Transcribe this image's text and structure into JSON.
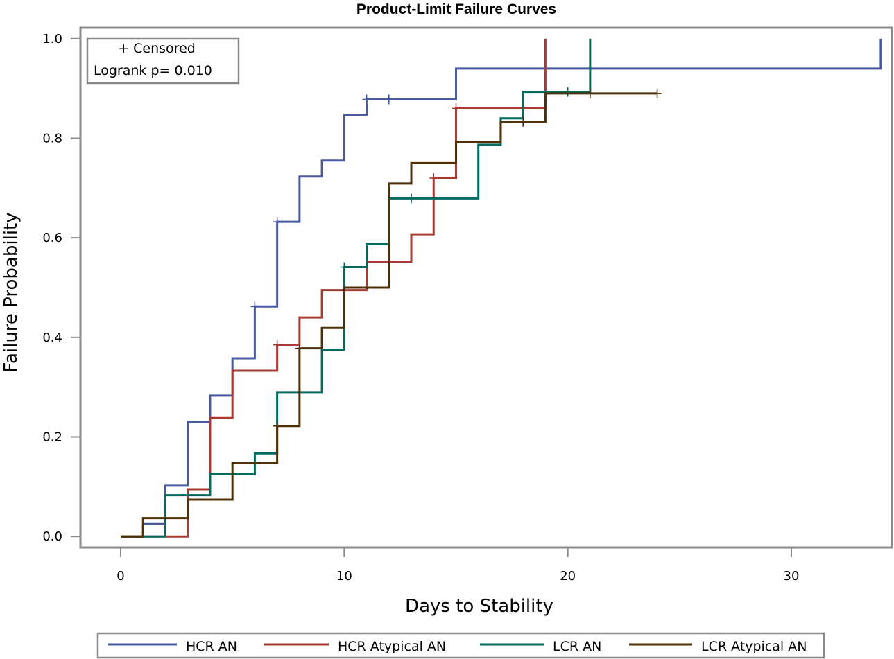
{
  "chart_data": {
    "type": "line",
    "subtype": "step",
    "title": "Product-Limit Failure Curves",
    "xlabel": "Days to Stability",
    "ylabel": "Failure Probability",
    "xlim": [
      -1.8,
      34.5
    ],
    "ylim": [
      -0.022,
      1.022
    ],
    "x_ticks": [
      {
        "value": 0,
        "label": "0"
      },
      {
        "value": 10,
        "label": "10"
      },
      {
        "value": 20,
        "label": "20"
      },
      {
        "value": 30,
        "label": "30"
      }
    ],
    "y_ticks": [
      {
        "value": 0.0,
        "label": "0.0"
      },
      {
        "value": 0.2,
        "label": "0.2"
      },
      {
        "value": 0.4,
        "label": "0.4"
      },
      {
        "value": 0.6,
        "label": "0.6"
      },
      {
        "value": 0.8,
        "label": "0.8"
      },
      {
        "value": 1.0,
        "label": "1.0"
      }
    ],
    "grid": false,
    "inset": {
      "censored_label": "+ Censored",
      "logrank_label": "Logrank p= 0.010"
    },
    "legend_position": "bottom",
    "series": [
      {
        "name": "HCR AN",
        "color": "#4a5aa0",
        "steps": [
          [
            0,
            0
          ],
          [
            1,
            0.025
          ],
          [
            2,
            0.102
          ],
          [
            3,
            0.23
          ],
          [
            4,
            0.283
          ],
          [
            5,
            0.358
          ],
          [
            6,
            0.462
          ],
          [
            7,
            0.632
          ],
          [
            8,
            0.723
          ],
          [
            9,
            0.755
          ],
          [
            10,
            0.847
          ],
          [
            11,
            0.878
          ],
          [
            15,
            0.94
          ],
          [
            34,
            1.0
          ]
        ],
        "censored": [
          [
            6,
            0.462
          ],
          [
            7,
            0.632
          ],
          [
            11,
            0.878
          ],
          [
            12,
            0.878
          ]
        ]
      },
      {
        "name": "HCR Atypical AN",
        "color": "#a83a32",
        "steps": [
          [
            0,
            0
          ],
          [
            3,
            0.095
          ],
          [
            4,
            0.238
          ],
          [
            5,
            0.333
          ],
          [
            7,
            0.385
          ],
          [
            8,
            0.44
          ],
          [
            9,
            0.495
          ],
          [
            11,
            0.552
          ],
          [
            13,
            0.607
          ],
          [
            14,
            0.72
          ],
          [
            15,
            0.86
          ],
          [
            19,
            1.0
          ]
        ],
        "censored": [
          [
            7,
            0.385
          ],
          [
            14,
            0.72
          ],
          [
            15,
            0.86
          ]
        ]
      },
      {
        "name": "LCR AN",
        "color": "#006b5e",
        "steps": [
          [
            0,
            0
          ],
          [
            2,
            0.083
          ],
          [
            4,
            0.125
          ],
          [
            6,
            0.167
          ],
          [
            7,
            0.29
          ],
          [
            9,
            0.375
          ],
          [
            10,
            0.541
          ],
          [
            11,
            0.587
          ],
          [
            12,
            0.679
          ],
          [
            16,
            0.787
          ],
          [
            17,
            0.84
          ],
          [
            18,
            0.893
          ],
          [
            21,
            1.0
          ]
        ],
        "censored": [
          [
            10,
            0.541
          ],
          [
            13,
            0.679
          ],
          [
            20,
            0.893
          ]
        ]
      },
      {
        "name": "LCR Atypical AN",
        "color": "#4f3108",
        "steps": [
          [
            0,
            0
          ],
          [
            1,
            0.037
          ],
          [
            3,
            0.074
          ],
          [
            5,
            0.148
          ],
          [
            7,
            0.222
          ],
          [
            8,
            0.378
          ],
          [
            9,
            0.419
          ],
          [
            10,
            0.5
          ],
          [
            12,
            0.709
          ],
          [
            13,
            0.75
          ],
          [
            15,
            0.792
          ],
          [
            17,
            0.833
          ],
          [
            19,
            0.89
          ]
        ],
        "end_x": 24,
        "censored": [
          [
            7,
            0.222
          ],
          [
            8,
            0.378
          ],
          [
            18,
            0.833
          ],
          [
            21,
            0.89
          ],
          [
            24,
            0.89
          ]
        ]
      }
    ]
  }
}
